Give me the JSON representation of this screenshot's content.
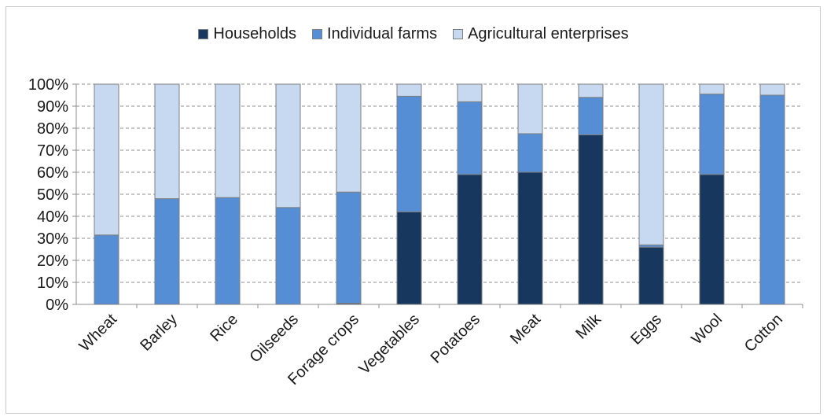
{
  "chart_data": {
    "type": "bar",
    "stacked": true,
    "percent_axis": true,
    "categories": [
      "Wheat",
      "Barley",
      "Rice",
      "Oilseeds",
      "Forage crops",
      "Vegetables",
      "Potatoes",
      "Meat",
      "Milk",
      "Eggs",
      "Wool",
      "Cotton"
    ],
    "series": [
      {
        "name": "Households",
        "color": "#17375e",
        "values": [
          0,
          0,
          0,
          0,
          0.5,
          42,
          59,
          60,
          77,
          26,
          59,
          0
        ]
      },
      {
        "name": "Individual farms",
        "color": "#558ed5",
        "values": [
          31.5,
          48,
          48.5,
          44,
          50.5,
          52.5,
          33,
          17.5,
          17,
          1,
          36.5,
          95
        ]
      },
      {
        "name": "Agricultural enterprises",
        "color": "#c6d9f1",
        "values": [
          68.5,
          52,
          51.5,
          56,
          49,
          5.5,
          8,
          22.5,
          6,
          73,
          4.5,
          5
        ]
      }
    ],
    "y_ticks": [
      "0%",
      "10%",
      "20%",
      "30%",
      "40%",
      "50%",
      "60%",
      "70%",
      "80%",
      "90%",
      "100%"
    ],
    "ylim": [
      0,
      100
    ],
    "grid": "dashed horizontal",
    "legend_position": "top"
  }
}
